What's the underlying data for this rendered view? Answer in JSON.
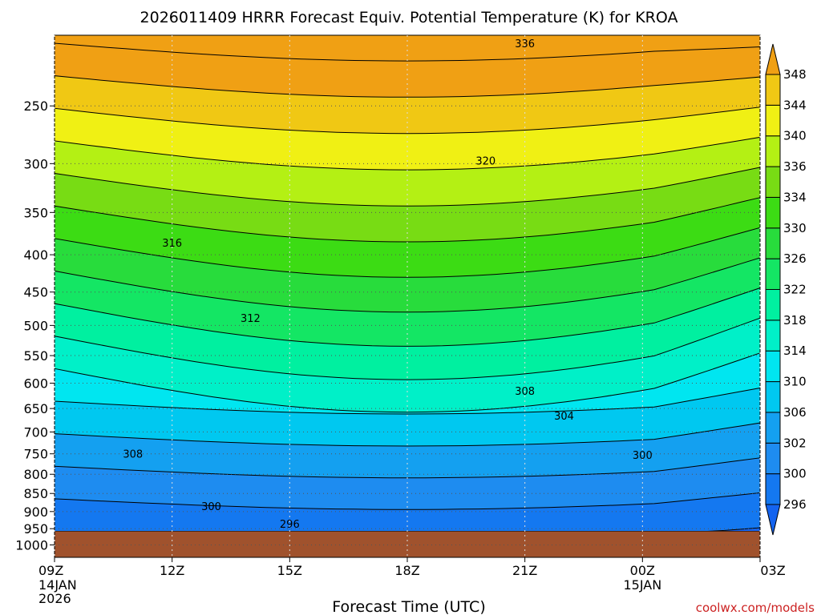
{
  "chart_data": {
    "type": "heatmap",
    "title": "2026011409 HRRR Forecast Equiv. Potential Temperature (K) for KROA",
    "xlabel": "Forecast Time (UTC)",
    "ylabel": "",
    "x_ticks": [
      {
        "label": "09Z",
        "sub": [
          "14JAN",
          "2026"
        ],
        "hour": 0
      },
      {
        "label": "12Z",
        "sub": [],
        "hour": 3
      },
      {
        "label": "15Z",
        "sub": [],
        "hour": 6
      },
      {
        "label": "18Z",
        "sub": [],
        "hour": 9
      },
      {
        "label": "21Z",
        "sub": [],
        "hour": 12
      },
      {
        "label": "00Z",
        "sub": [
          "15JAN"
        ],
        "hour": 15
      },
      {
        "label": "03Z",
        "sub": [],
        "hour": 18
      }
    ],
    "xlim": [
      0,
      18
    ],
    "y_ticks": [
      250,
      300,
      350,
      400,
      450,
      500,
      550,
      600,
      650,
      700,
      750,
      800,
      850,
      900,
      950,
      1000
    ],
    "ylim": [
      1040,
      200
    ],
    "y_scale": "log",
    "surface_pressure": 958,
    "colorbar": {
      "ticks": [
        296,
        300,
        302,
        306,
        310,
        314,
        318,
        322,
        326,
        330,
        334,
        336,
        340,
        344,
        348
      ],
      "colors": [
        "#1464f0",
        "#1478f0",
        "#1e8cf0",
        "#14a0f0",
        "#00c8f0",
        "#00e6f0",
        "#00f0c8",
        "#00f0a0",
        "#14e664",
        "#28dc3c",
        "#3cdc14",
        "#78dc14",
        "#b4f014",
        "#f0f014",
        "#f0c814",
        "#f0a014"
      ]
    },
    "contour_labels": [
      {
        "value": "336",
        "hour": 12.0,
        "pressure": 205
      },
      {
        "value": "320",
        "hour": 11.0,
        "pressure": 297
      },
      {
        "value": "316",
        "hour": 3.0,
        "pressure": 385
      },
      {
        "value": "312",
        "hour": 5.0,
        "pressure": 488
      },
      {
        "value": "308",
        "hour": 12.0,
        "pressure": 615
      },
      {
        "value": "304",
        "hour": 13.0,
        "pressure": 665
      },
      {
        "value": "300",
        "hour": 15.0,
        "pressure": 752
      },
      {
        "value": "308",
        "hour": 2.0,
        "pressure": 750
      },
      {
        "value": "300",
        "hour": 4.0,
        "pressure": 885
      },
      {
        "value": "296",
        "hour": 6.0,
        "pressure": 935
      }
    ],
    "grid": true
  },
  "credit": "coolwx.com/models"
}
